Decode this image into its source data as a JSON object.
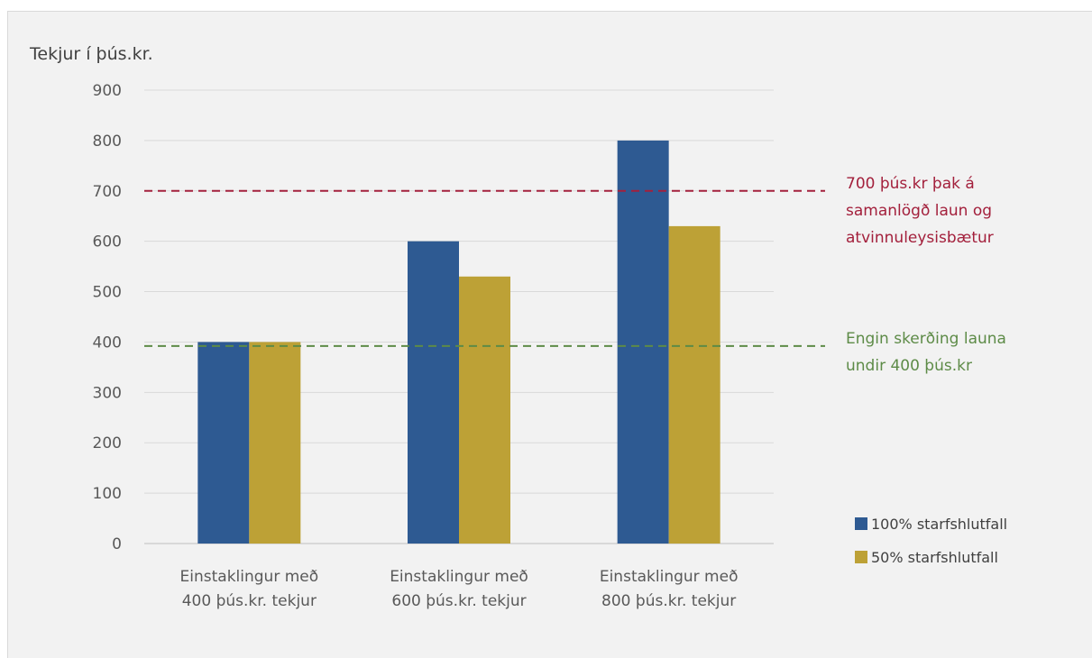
{
  "chart_data": {
    "type": "bar",
    "ylabel": "Tekjur í þús.kr.",
    "ylim": [
      0,
      900
    ],
    "yticks": [
      0,
      100,
      200,
      300,
      400,
      500,
      600,
      700,
      800,
      900
    ],
    "grid": true,
    "legend_position": "bottom-right",
    "categories": [
      [
        "Einstaklingur með",
        "400 þús.kr. tekjur"
      ],
      [
        "Einstaklingur með",
        "600 þús.kr. tekjur"
      ],
      [
        "Einstaklingur með",
        "800 þús.kr. tekjur"
      ]
    ],
    "series": [
      {
        "name": "100% starfshlutfall",
        "color": "#2e5a92",
        "values": [
          400,
          600,
          800
        ]
      },
      {
        "name": "50% starfshlutfall",
        "color": "#bda136",
        "values": [
          400,
          530,
          630
        ]
      }
    ],
    "reference_lines": [
      {
        "value": 700,
        "color": "#a3203c",
        "label": [
          "700 þús.kr þak á",
          "samanlögð laun og",
          "atvinnuleysisbætur"
        ]
      },
      {
        "value": 392,
        "color": "#5d8b47",
        "label": [
          "Engin skerðing launa",
          "undir 400 þús.kr"
        ]
      }
    ]
  }
}
